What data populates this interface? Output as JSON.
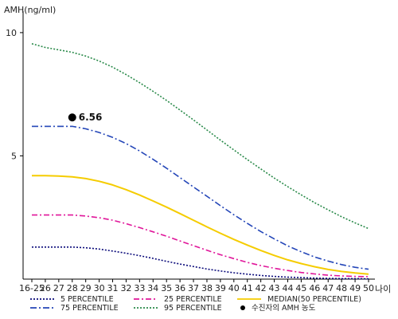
{
  "chart_data": {
    "type": "line",
    "ylabel": "AMH(ng/ml)",
    "xlabel": "나이",
    "ylim": [
      0,
      11
    ],
    "yticks": [
      5,
      10
    ],
    "categories": [
      "16-25",
      "26",
      "27",
      "28",
      "29",
      "30",
      "31",
      "32",
      "33",
      "34",
      "35",
      "36",
      "37",
      "38",
      "39",
      "40",
      "41",
      "42",
      "43",
      "44",
      "45",
      "46",
      "47",
      "48",
      "49",
      "50"
    ],
    "series": [
      {
        "name": "5 PERCENTILE",
        "color": "#0a0a7a",
        "dash": "2,2",
        "values": [
          1.3,
          1.3,
          1.3,
          1.3,
          1.27,
          1.22,
          1.14,
          1.05,
          0.95,
          0.84,
          0.72,
          0.61,
          0.51,
          0.41,
          0.33,
          0.26,
          0.2,
          0.15,
          0.11,
          0.08,
          0.06,
          0.04,
          0.03,
          0.02,
          0.02,
          0.01
        ]
      },
      {
        "name": "25 PERCENTILE",
        "color": "#e0169a",
        "dash": "7,3,2,3",
        "values": [
          2.6,
          2.6,
          2.6,
          2.6,
          2.56,
          2.49,
          2.39,
          2.25,
          2.09,
          1.92,
          1.74,
          1.55,
          1.36,
          1.17,
          0.99,
          0.83,
          0.68,
          0.55,
          0.44,
          0.35,
          0.27,
          0.21,
          0.16,
          0.13,
          0.11,
          0.1
        ]
      },
      {
        "name": "MEDIAN(50 PERCENTILE)",
        "color": "#f5cc00",
        "dash": "",
        "values": [
          4.2,
          4.2,
          4.18,
          4.15,
          4.08,
          3.97,
          3.82,
          3.63,
          3.41,
          3.17,
          2.92,
          2.66,
          2.39,
          2.12,
          1.86,
          1.61,
          1.38,
          1.16,
          0.96,
          0.78,
          0.63,
          0.5,
          0.39,
          0.31,
          0.25,
          0.2
        ]
      },
      {
        "name": "75 PERCENTILE",
        "color": "#2446b8",
        "dash": "8,3,2,3",
        "values": [
          6.2,
          6.2,
          6.2,
          6.2,
          6.1,
          5.95,
          5.75,
          5.5,
          5.2,
          4.86,
          4.5,
          4.12,
          3.74,
          3.36,
          2.98,
          2.61,
          2.26,
          1.93,
          1.63,
          1.35,
          1.11,
          0.9,
          0.73,
          0.59,
          0.48,
          0.4
        ]
      },
      {
        "name": "95 PERCENTILE",
        "color": "#2a8a4a",
        "dash": "2,2",
        "values": [
          9.55,
          9.4,
          9.3,
          9.2,
          9.05,
          8.85,
          8.6,
          8.3,
          7.97,
          7.62,
          7.25,
          6.86,
          6.46,
          6.05,
          5.64,
          5.24,
          4.85,
          4.47,
          4.1,
          3.75,
          3.42,
          3.1,
          2.81,
          2.53,
          2.28,
          2.05
        ]
      }
    ],
    "marker": {
      "x": "28",
      "value": 6.56,
      "label": "6.56",
      "color": "#000000"
    },
    "legend": [
      {
        "name": "5 PERCENTILE",
        "kind": "line",
        "color": "#0a0a7a",
        "dash": "2,2"
      },
      {
        "name": "25 PERCENTILE",
        "kind": "line",
        "color": "#e0169a",
        "dash": "7,3,2,3"
      },
      {
        "name": "MEDIAN(50 PERCENTILE)",
        "kind": "line",
        "color": "#f5cc00",
        "dash": ""
      },
      {
        "name": "75 PERCENTILE",
        "kind": "line",
        "color": "#2446b8",
        "dash": "8,3,2,3"
      },
      {
        "name": "95 PERCENTILE",
        "kind": "line",
        "color": "#2a8a4a",
        "dash": "2,2"
      },
      {
        "name": "수진자의 AMH 농도",
        "kind": "dot",
        "color": "#000000"
      }
    ]
  }
}
